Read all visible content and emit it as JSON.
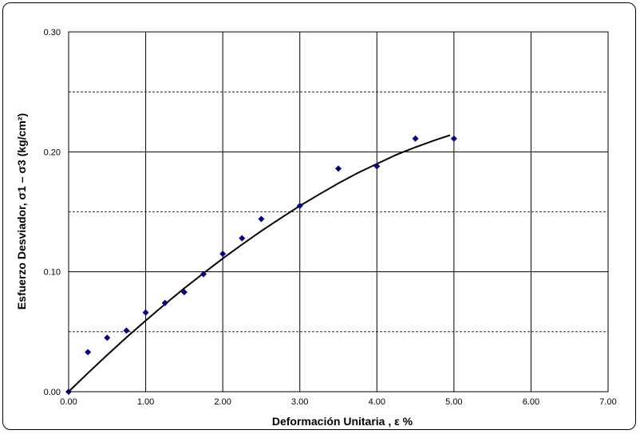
{
  "chart_data": {
    "type": "scatter",
    "xlabel": "Deformación Unitaria , ε %",
    "ylabel": "Esfuerzo Desviador, σ1 – σ3 (kg/cm²)",
    "xlim": [
      0,
      7
    ],
    "ylim": [
      0,
      0.3
    ],
    "x_ticks": [
      "0.00",
      "1.00",
      "2.00",
      "3.00",
      "4.00",
      "5.00",
      "6.00",
      "7.00"
    ],
    "y_ticks": [
      "0.00",
      "0.10",
      "0.20",
      "0.30"
    ],
    "grid": true,
    "minor_y_dashed": [
      0.05,
      0.15,
      0.25
    ],
    "points_color": "#000080",
    "series": [
      {
        "kind": "points",
        "x": [
          0.0,
          0.25,
          0.5,
          0.75,
          1.0,
          1.25,
          1.5,
          1.75,
          2.0,
          2.25,
          2.5,
          3.0,
          3.5,
          4.0,
          4.5,
          5.0
        ],
        "y": [
          0.0,
          0.033,
          0.045,
          0.051,
          0.066,
          0.074,
          0.083,
          0.098,
          0.115,
          0.128,
          0.144,
          0.155,
          0.186,
          0.188,
          0.211,
          0.211
        ]
      },
      {
        "kind": "trend",
        "x": [
          0.0,
          0.25,
          0.5,
          0.75,
          1.0,
          1.25,
          1.5,
          1.75,
          2.0,
          2.25,
          2.5,
          2.75,
          3.0,
          3.25,
          3.5,
          3.75,
          4.0,
          4.25,
          4.5,
          4.75,
          4.95
        ],
        "y": [
          0.0,
          0.0155,
          0.0306,
          0.0452,
          0.0593,
          0.073,
          0.0862,
          0.0988,
          0.111,
          0.1227,
          0.134,
          0.1446,
          0.155,
          0.1645,
          0.1738,
          0.1823,
          0.19,
          0.1975,
          0.2039,
          0.2097,
          0.2139
        ]
      }
    ]
  }
}
